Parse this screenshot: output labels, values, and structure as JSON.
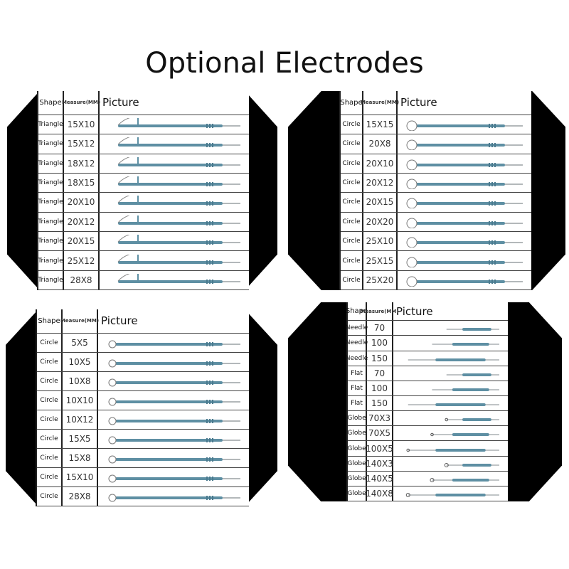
{
  "title": "Optional Electrodes",
  "colors": {
    "electrode": "#5e8fa3",
    "tip": "#9aa0a4",
    "panel_bg": "#000000"
  },
  "headers": {
    "shape": "Shape",
    "measure": "Measure(MM)",
    "picture": "Picture"
  },
  "panels": [
    {
      "rows": [
        {
          "shape": "Triangle",
          "measure": "15X10"
        },
        {
          "shape": "Triangle",
          "measure": "15X12"
        },
        {
          "shape": "Triangle",
          "measure": "18X12"
        },
        {
          "shape": "Triangle",
          "measure": "18X15"
        },
        {
          "shape": "Triangle",
          "measure": "20X10"
        },
        {
          "shape": "Triangle",
          "measure": "20X12"
        },
        {
          "shape": "Triangle",
          "measure": "20X15"
        },
        {
          "shape": "Triangle",
          "measure": "25X12"
        },
        {
          "shape": "Triangle",
          "measure": "28X8"
        }
      ]
    },
    {
      "rows": [
        {
          "shape": "Circle",
          "measure": "15X15"
        },
        {
          "shape": "Circle",
          "measure": "20X8"
        },
        {
          "shape": "Circle",
          "measure": "20X10"
        },
        {
          "shape": "Circle",
          "measure": "20X12"
        },
        {
          "shape": "Circle",
          "measure": "20X15"
        },
        {
          "shape": "Circle",
          "measure": "20X20"
        },
        {
          "shape": "Circle",
          "measure": "25X10"
        },
        {
          "shape": "Circle",
          "measure": "25X15"
        },
        {
          "shape": "Circle",
          "measure": "25X20"
        }
      ]
    },
    {
      "rows": [
        {
          "shape": "Circle",
          "measure": "5X5"
        },
        {
          "shape": "Circle",
          "measure": "10X5"
        },
        {
          "shape": "Circle",
          "measure": "10X8"
        },
        {
          "shape": "Circle",
          "measure": "10X10"
        },
        {
          "shape": "Circle",
          "measure": "10X12"
        },
        {
          "shape": "Circle",
          "measure": "15X5"
        },
        {
          "shape": "Circle",
          "measure": "15X8"
        },
        {
          "shape": "Circle",
          "measure": "15X10"
        },
        {
          "shape": "Circle",
          "measure": "28X8"
        }
      ]
    },
    {
      "rows": [
        {
          "shape": "Needle",
          "measure": "70"
        },
        {
          "shape": "Needle",
          "measure": "100"
        },
        {
          "shape": "Needle",
          "measure": "150"
        },
        {
          "shape": "Flat",
          "measure": "70"
        },
        {
          "shape": "Flat",
          "measure": "100"
        },
        {
          "shape": "Flat",
          "measure": "150"
        },
        {
          "shape": "Globe",
          "measure": "70X3"
        },
        {
          "shape": "Globe",
          "measure": "70X5"
        },
        {
          "shape": "Globe",
          "measure": "100X5"
        },
        {
          "shape": "Globe",
          "measure": "140X3"
        },
        {
          "shape": "Globe",
          "measure": "140X5"
        },
        {
          "shape": "Globe",
          "measure": "140X8"
        }
      ]
    }
  ]
}
